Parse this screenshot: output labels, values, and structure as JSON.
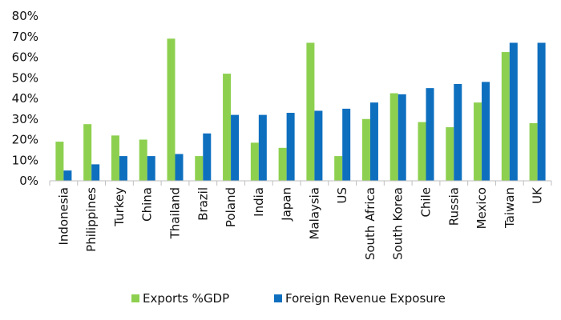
{
  "chart_data": {
    "type": "bar",
    "categories": [
      "Indonesia",
      "Philippines",
      "Turkey",
      "China",
      "Thailand",
      "Brazil",
      "Poland",
      "India",
      "Japan",
      "Malaysia",
      "US",
      "South Africa",
      "South Korea",
      "Chile",
      "Russia",
      "Mexico",
      "Taiwan",
      "UK"
    ],
    "series": [
      {
        "name": "Exports %GDP",
        "color": "#8dd04f",
        "values": [
          19,
          27.5,
          22,
          20,
          69,
          12,
          52,
          18.5,
          16,
          67,
          12,
          30,
          42.5,
          28.5,
          26,
          38,
          62.5,
          28
        ]
      },
      {
        "name": "Foreign Revenue Exposure",
        "color": "#0e6fbf",
        "values": [
          5,
          8,
          12,
          12,
          13,
          23,
          32,
          32,
          33,
          34,
          35,
          38,
          42,
          45,
          47,
          48,
          67,
          67
        ]
      }
    ],
    "y_ticks": [
      "0%",
      "10%",
      "20%",
      "30%",
      "40%",
      "50%",
      "60%",
      "70%",
      "80%"
    ],
    "ylim": [
      0,
      80
    ],
    "y_unit": "percent",
    "grid": false,
    "legend_position": "bottom-center",
    "title": "",
    "xlabel": "",
    "ylabel": ""
  }
}
